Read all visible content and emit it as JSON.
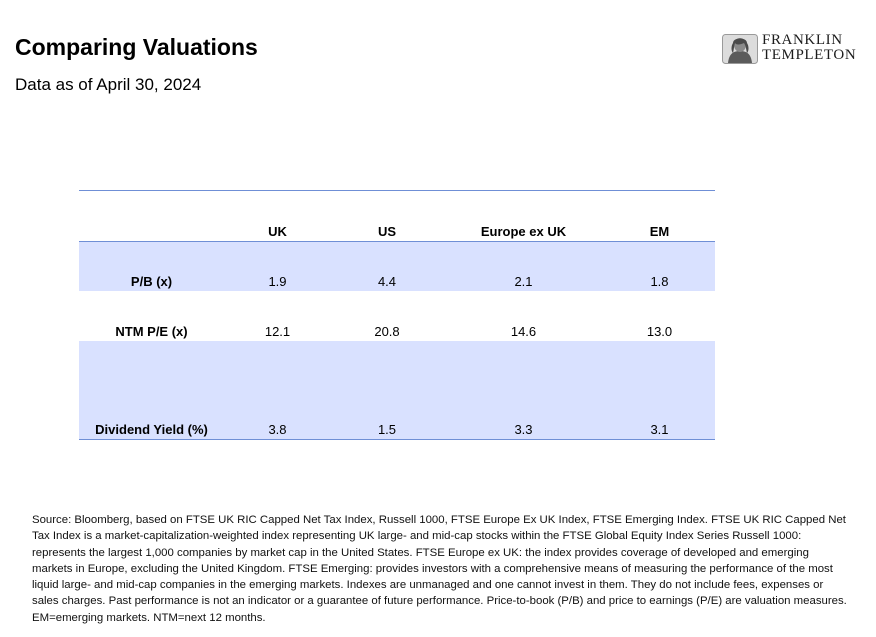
{
  "header": {
    "title": "Comparing Valuations",
    "subtitle": "Data as of April 30, 2024"
  },
  "logo": {
    "line1": "FRANKLIN",
    "line2": "TEMPLETON",
    "icon": "benjamin-franklin-portrait-icon"
  },
  "table": {
    "columns": [
      "",
      "UK",
      "US",
      "Europe ex UK",
      "EM"
    ],
    "rows": [
      {
        "label": "P/B (x)",
        "values": [
          "1.9",
          "4.4",
          "2.1",
          "1.8"
        ]
      },
      {
        "label": "NTM P/E (x)",
        "values": [
          "12.1",
          "20.8",
          "14.6",
          "13.0"
        ]
      },
      {
        "label": "Dividend Yield (%)",
        "values": [
          "3.8",
          "1.5",
          "3.3",
          "3.1"
        ]
      }
    ]
  },
  "footnote": "Source: Bloomberg, based on FTSE UK RIC Capped Net Tax Index, Russell 1000, FTSE Europe Ex UK Index, FTSE Emerging Index. FTSE UK RIC Capped Net Tax Index is a market-capitalization-weighted index representing UK large- and mid-cap stocks within the FTSE Global Equity Index Series Russell 1000: represents the largest 1,000 companies by market cap in the United States. FTSE Europe ex UK: the index provides coverage of developed and emerging markets in Europe, excluding the United Kingdom. FTSE Emerging: provides investors with a comprehensive means of measuring the performance of the most liquid large- and mid-cap companies in the emerging markets. Indexes are unmanaged and one cannot invest in them. They do not include fees, expenses or sales charges. Past performance is not an indicator or a guarantee of future performance. Price-to-book (P/B) and price to earnings (P/E) are valuation measures. EM=emerging markets. NTM=next 12 months.",
  "colors": {
    "band": "#d9e1ff",
    "rule": "#6f8fd6"
  }
}
